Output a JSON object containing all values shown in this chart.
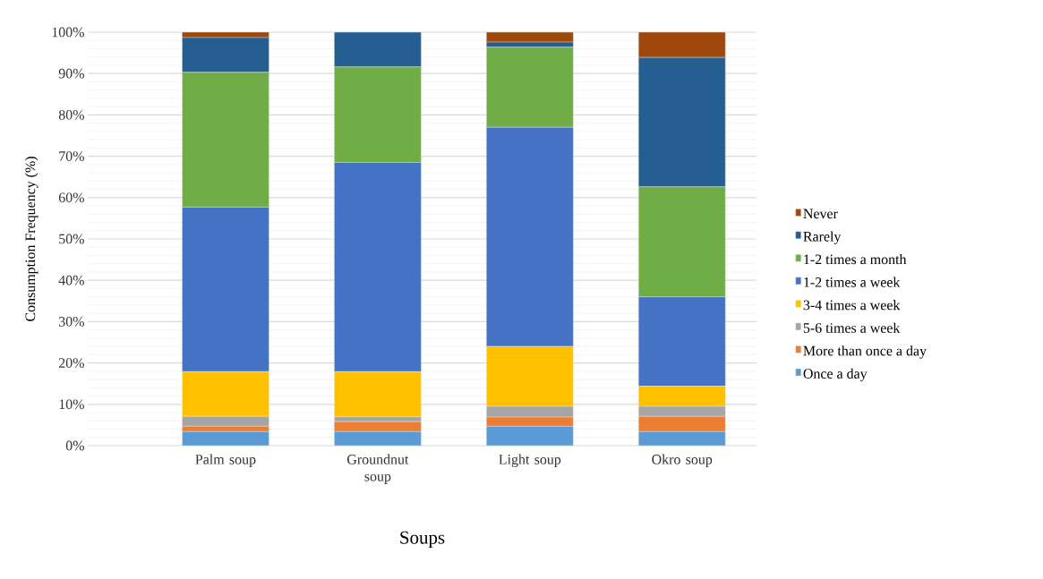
{
  "chart_data": {
    "type": "bar",
    "stacked": true,
    "xlabel": "Soups",
    "ylabel": "Consumption Frequency (%)",
    "categories": [
      "Palm soup",
      "Groundnut soup",
      "Light soup",
      "Okro soup"
    ],
    "series": [
      {
        "name": "Once a day",
        "color": "#5b9bd5",
        "values": [
          3.4,
          3.4,
          4.7,
          3.4
        ]
      },
      {
        "name": "More than once a day",
        "color": "#ed7d31",
        "values": [
          1.3,
          2.4,
          2.2,
          3.7
        ]
      },
      {
        "name": "5-6 times a week",
        "color": "#a5a5a5",
        "values": [
          2.4,
          1.2,
          2.6,
          2.4
        ]
      },
      {
        "name": "3-4 times a week",
        "color": "#ffc000",
        "values": [
          10.8,
          10.9,
          14.5,
          4.9
        ]
      },
      {
        "name": "1-2 times a week",
        "color": "#4472c4",
        "values": [
          39.8,
          50.6,
          53.0,
          21.6
        ]
      },
      {
        "name": "1-2 times a month",
        "color": "#70ad47",
        "values": [
          32.6,
          23.1,
          19.4,
          26.6
        ]
      },
      {
        "name": "Rarely",
        "color": "#255e91",
        "values": [
          8.4,
          8.4,
          1.2,
          31.3
        ]
      },
      {
        "name": "Never",
        "color": "#9e480e",
        "values": [
          1.3,
          0,
          2.4,
          6.1
        ]
      }
    ],
    "ylim": [
      0,
      100
    ],
    "yticks": [
      {
        "value": 0,
        "label": "0%"
      },
      {
        "value": 10,
        "label": "10%"
      },
      {
        "value": 20,
        "label": "20%"
      },
      {
        "value": 30,
        "label": "30%"
      },
      {
        "value": 40,
        "label": "40%"
      },
      {
        "value": 50,
        "label": "50%"
      },
      {
        "value": 60,
        "label": "60%"
      },
      {
        "value": 70,
        "label": "70%"
      },
      {
        "value": 80,
        "label": "80%"
      },
      {
        "value": 90,
        "label": "90%"
      },
      {
        "value": 100,
        "label": "100%"
      }
    ],
    "grid": "y",
    "legend": "right"
  }
}
